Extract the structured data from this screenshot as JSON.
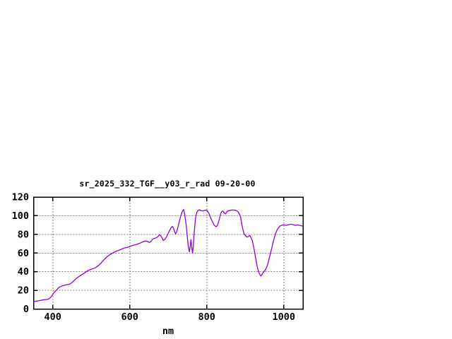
{
  "window": {
    "background": "#ffffff"
  },
  "chart_data": {
    "type": "line",
    "title": "sr_2025_332_TGF__y03_r_rad 09-20-00",
    "xlabel": "nm",
    "ylabel": "",
    "xlim": [
      350,
      1050
    ],
    "ylim": [
      0,
      120
    ],
    "xticks": [
      400,
      600,
      800,
      1000
    ],
    "yticks": [
      0,
      20,
      40,
      60,
      80,
      100,
      120
    ],
    "grid": true,
    "legend": "none",
    "line_color": "#9400d3",
    "grid_color": "#808080",
    "border_color": "#000000",
    "text_color": "#000000",
    "series": [
      {
        "name": "sr_2025_332_TGF__y03_r_rad",
        "points": [
          [
            350,
            7.8
          ],
          [
            354,
            8.2
          ],
          [
            358,
            8.5
          ],
          [
            362,
            8.8
          ],
          [
            366,
            9.1
          ],
          [
            370,
            9.4
          ],
          [
            374,
            9.7
          ],
          [
            378,
            9.9
          ],
          [
            382,
            10.1
          ],
          [
            386,
            10.3
          ],
          [
            390,
            10.9
          ],
          [
            394,
            12.2
          ],
          [
            398,
            14.3
          ],
          [
            402,
            16.8
          ],
          [
            406,
            18.8
          ],
          [
            410,
            20.5
          ],
          [
            414,
            22.3
          ],
          [
            418,
            23.6
          ],
          [
            422,
            24.4
          ],
          [
            426,
            25.0
          ],
          [
            430,
            25.4
          ],
          [
            434,
            25.8
          ],
          [
            438,
            26.1
          ],
          [
            442,
            26.4
          ],
          [
            446,
            27.0
          ],
          [
            450,
            28.4
          ],
          [
            454,
            30.0
          ],
          [
            458,
            31.6
          ],
          [
            462,
            33.0
          ],
          [
            466,
            34.2
          ],
          [
            470,
            35.4
          ],
          [
            474,
            36.4
          ],
          [
            478,
            37.4
          ],
          [
            482,
            38.4
          ],
          [
            486,
            39.7
          ],
          [
            490,
            40.8
          ],
          [
            494,
            41.6
          ],
          [
            498,
            42.3
          ],
          [
            502,
            42.9
          ],
          [
            506,
            43.4
          ],
          [
            510,
            44.1
          ],
          [
            514,
            45.1
          ],
          [
            518,
            46.3
          ],
          [
            522,
            47.8
          ],
          [
            526,
            49.6
          ],
          [
            530,
            51.4
          ],
          [
            534,
            53.2
          ],
          [
            538,
            54.9
          ],
          [
            542,
            56.3
          ],
          [
            546,
            57.6
          ],
          [
            550,
            58.6
          ],
          [
            554,
            59.6
          ],
          [
            558,
            60.5
          ],
          [
            562,
            61.4
          ],
          [
            566,
            62.1
          ],
          [
            570,
            62.7
          ],
          [
            574,
            63.3
          ],
          [
            578,
            64.0
          ],
          [
            582,
            64.7
          ],
          [
            586,
            65.3
          ],
          [
            590,
            65.8
          ],
          [
            594,
            66.2
          ],
          [
            598,
            66.6
          ],
          [
            602,
            67.2
          ],
          [
            606,
            67.9
          ],
          [
            610,
            68.4
          ],
          [
            614,
            68.8
          ],
          [
            618,
            69.3
          ],
          [
            622,
            69.9
          ],
          [
            626,
            70.5
          ],
          [
            630,
            71.2
          ],
          [
            634,
            72.0
          ],
          [
            638,
            72.6
          ],
          [
            641,
            72.9
          ],
          [
            644,
            72.8
          ],
          [
            647,
            72.2
          ],
          [
            650,
            71.4
          ],
          [
            653,
            71.6
          ],
          [
            656,
            73.0
          ],
          [
            659,
            74.8
          ],
          [
            662,
            75.4
          ],
          [
            666,
            75.9
          ],
          [
            670,
            76.6
          ],
          [
            673,
            77.5
          ],
          [
            676,
            78.9
          ],
          [
            678,
            79.4
          ],
          [
            681,
            78.3
          ],
          [
            684,
            76.0
          ],
          [
            687,
            73.5
          ],
          [
            690,
            74.2
          ],
          [
            693,
            75.6
          ],
          [
            696,
            77.8
          ],
          [
            699,
            80.3
          ],
          [
            702,
            82.8
          ],
          [
            705,
            85.3
          ],
          [
            708,
            87.5
          ],
          [
            711,
            88.5
          ],
          [
            714,
            86.0
          ],
          [
            717,
            82.5
          ],
          [
            719,
            80.5
          ],
          [
            722,
            83.0
          ],
          [
            725,
            87.5
          ],
          [
            728,
            92.5
          ],
          [
            731,
            97.5
          ],
          [
            734,
            102.0
          ],
          [
            737,
            105.0
          ],
          [
            740,
            106.5
          ],
          [
            743,
            101.0
          ],
          [
            746,
            92.0
          ],
          [
            749,
            79.0
          ],
          [
            752,
            67.0
          ],
          [
            755,
            61.5
          ],
          [
            757,
            67.0
          ],
          [
            759,
            74.5
          ],
          [
            761,
            66.0
          ],
          [
            763,
            60.0
          ],
          [
            765,
            67.0
          ],
          [
            767,
            80.0
          ],
          [
            769,
            90.0
          ],
          [
            771,
            97.5
          ],
          [
            774,
            103.5
          ],
          [
            777,
            105.3
          ],
          [
            780,
            106.3
          ],
          [
            783,
            106.0
          ],
          [
            786,
            105.3
          ],
          [
            789,
            105.0
          ],
          [
            792,
            105.4
          ],
          [
            795,
            105.8
          ],
          [
            798,
            106.0
          ],
          [
            801,
            105.4
          ],
          [
            804,
            103.8
          ],
          [
            807,
            101.0
          ],
          [
            810,
            98.0
          ],
          [
            813,
            95.0
          ],
          [
            816,
            92.5
          ],
          [
            819,
            90.0
          ],
          [
            822,
            88.8
          ],
          [
            825,
            88.3
          ],
          [
            828,
            90.0
          ],
          [
            831,
            93.5
          ],
          [
            834,
            98.5
          ],
          [
            837,
            103.3
          ],
          [
            840,
            105.0
          ],
          [
            843,
            104.4
          ],
          [
            846,
            102.6
          ],
          [
            849,
            102.0
          ],
          [
            852,
            104.0
          ],
          [
            855,
            105.0
          ],
          [
            858,
            105.4
          ],
          [
            862,
            105.8
          ],
          [
            866,
            106.1
          ],
          [
            870,
            106.1
          ],
          [
            874,
            105.8
          ],
          [
            878,
            105.2
          ],
          [
            882,
            104.0
          ],
          [
            885,
            101.5
          ],
          [
            888,
            98.5
          ],
          [
            891,
            91.0
          ],
          [
            894,
            85.0
          ],
          [
            897,
            80.5
          ],
          [
            900,
            79.0
          ],
          [
            903,
            77.5
          ],
          [
            906,
            77.0
          ],
          [
            909,
            78.3
          ],
          [
            912,
            78.8
          ],
          [
            915,
            76.5
          ],
          [
            918,
            73.5
          ],
          [
            921,
            68.5
          ],
          [
            924,
            62.0
          ],
          [
            927,
            54.5
          ],
          [
            930,
            47.5
          ],
          [
            933,
            42.5
          ],
          [
            936,
            38.5
          ],
          [
            939,
            36.0
          ],
          [
            941,
            35.4
          ],
          [
            943,
            36.8
          ],
          [
            946,
            38.8
          ],
          [
            949,
            40.3
          ],
          [
            952,
            41.8
          ],
          [
            955,
            44.2
          ],
          [
            958,
            47.5
          ],
          [
            961,
            52.0
          ],
          [
            964,
            57.0
          ],
          [
            967,
            62.3
          ],
          [
            970,
            67.3
          ],
          [
            973,
            72.3
          ],
          [
            976,
            77.0
          ],
          [
            979,
            81.0
          ],
          [
            982,
            84.0
          ],
          [
            985,
            86.3
          ],
          [
            988,
            88.0
          ],
          [
            991,
            89.0
          ],
          [
            994,
            89.6
          ],
          [
            997,
            90.0
          ],
          [
            1000,
            90.2
          ],
          [
            1004,
            89.8
          ],
          [
            1008,
            89.7
          ],
          [
            1012,
            90.3
          ],
          [
            1016,
            90.7
          ],
          [
            1020,
            90.9
          ],
          [
            1024,
            90.4
          ],
          [
            1028,
            89.9
          ],
          [
            1032,
            89.7
          ],
          [
            1036,
            90.1
          ],
          [
            1040,
            89.7
          ],
          [
            1044,
            89.4
          ],
          [
            1047,
            89.1
          ],
          [
            1050,
            88.9
          ]
        ]
      }
    ]
  }
}
